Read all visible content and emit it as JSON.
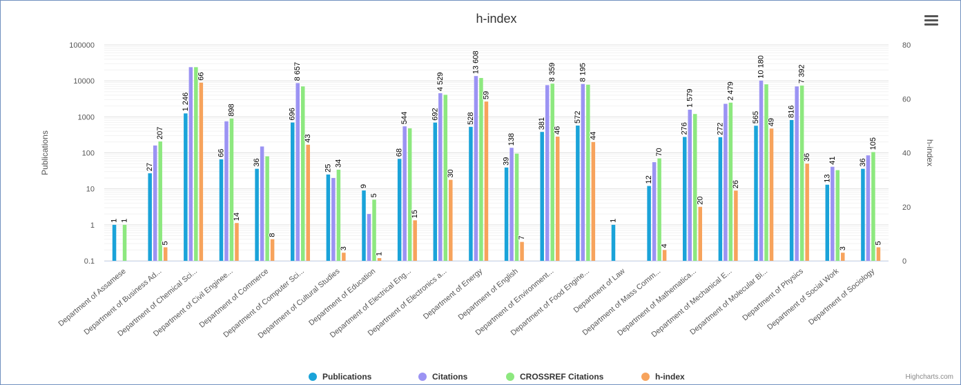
{
  "chart_data": {
    "type": "bar",
    "title": "h-index",
    "ylabel_left": "Publications",
    "ylabel_right": "h-index",
    "yscale_left": "log",
    "ylim_left": [
      0.1,
      100000
    ],
    "yticks_left": [
      "0.1",
      "1",
      "10",
      "100",
      "1000",
      "10000",
      "100000"
    ],
    "ylim_right": [
      0,
      80
    ],
    "yticks_right": [
      "0",
      "20",
      "40",
      "60",
      "80"
    ],
    "legend_position": "bottom-center",
    "categories": [
      "Department of Assamese",
      "Department of Business Ad...",
      "Department of Chemical Sci...",
      "Department of Civil Enginee...",
      "Department of Commerce",
      "Department of Computer Sci...",
      "Department of Cultural Studies",
      "Department of Education",
      "Department of Electrical Eng...",
      "Department of Electronics a...",
      "Department of Energy",
      "Department of English",
      "Department of Environment...",
      "Department of Food Engine...",
      "Department of Law",
      "Department of Mass Comm...",
      "Department of Mathematica...",
      "Department of Mechanical E...",
      "Department of Molecular Bi...",
      "Department of Physics",
      "Department of Social Work",
      "Department of Sociology"
    ],
    "series": [
      {
        "name": "Publications",
        "color": "#1aa3d9",
        "axis": "left",
        "values": [
          1,
          27,
          1246,
          66,
          36,
          696,
          25,
          9,
          68,
          692,
          528,
          39,
          381,
          572,
          1,
          12,
          276,
          272,
          565,
          816,
          13,
          36
        ],
        "labels": [
          "1",
          "27",
          "1 246",
          "66",
          "36",
          "696",
          "25",
          "9",
          "68",
          "692",
          "528",
          "39",
          "381",
          "572",
          "1",
          "12",
          "276",
          "272",
          "565",
          "816",
          "13",
          "36"
        ]
      },
      {
        "name": "Citations",
        "color": "#9b93f3",
        "axis": "left",
        "values": [
          null,
          160,
          24000,
          750,
          150,
          8657,
          20,
          2,
          544,
          4529,
          13608,
          138,
          7600,
          8195,
          null,
          55,
          1579,
          2300,
          10180,
          7000,
          41,
          85
        ],
        "labels": [
          "",
          "",
          "",
          "",
          "",
          "8 657",
          "",
          "",
          "544",
          "4 529",
          "13 608",
          "138",
          "",
          "8 195",
          "",
          "",
          "1 579",
          "",
          "10 180",
          "",
          "41",
          ""
        ]
      },
      {
        "name": "CROSSREF Citations",
        "color": "#8de87f",
        "axis": "left",
        "values": [
          1,
          207,
          24000,
          898,
          80,
          7000,
          34,
          5,
          480,
          4100,
          12000,
          95,
          8359,
          7800,
          null,
          70,
          1200,
          2479,
          8000,
          7392,
          33,
          105
        ],
        "labels": [
          "1",
          "207",
          "",
          "898",
          "",
          "",
          "34",
          "5",
          "",
          "",
          "",
          "",
          "8 359",
          "",
          "",
          "70",
          "",
          "2 479",
          "",
          "7 392",
          "",
          "105"
        ]
      },
      {
        "name": "h-index",
        "color": "#f7a35c",
        "axis": "right",
        "values": [
          null,
          5,
          66,
          14,
          8,
          43,
          3,
          1,
          15,
          30,
          59,
          7,
          46,
          44,
          null,
          4,
          20,
          26,
          49,
          36,
          3,
          5
        ],
        "labels": [
          "",
          "5",
          "66",
          "14",
          "8",
          "43",
          "3",
          "1",
          "15",
          "30",
          "59",
          "7",
          "46",
          "44",
          "",
          "4",
          "20",
          "26",
          "49",
          "36",
          "3",
          "5"
        ]
      }
    ]
  },
  "menu_icon": "hamburger-menu-icon",
  "credit": "Highcharts.com"
}
